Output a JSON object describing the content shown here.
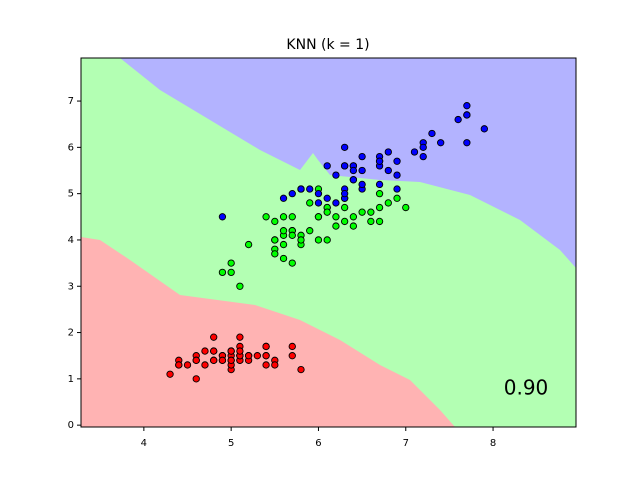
{
  "chart_data": {
    "type": "scatter",
    "title": "KNN (k = 1)",
    "annotation": "0.90",
    "xlim": [
      3.28,
      8.95
    ],
    "ylim": [
      -0.04,
      7.93
    ],
    "xticks": [
      4,
      5,
      6,
      7,
      8
    ],
    "yticks": [
      0,
      1,
      2,
      3,
      4,
      5,
      6,
      7
    ],
    "series": [
      {
        "color": "#ff0000",
        "x": [
          5.1,
          4.9,
          4.7,
          4.6,
          5.0,
          5.4,
          4.6,
          5.0,
          4.4,
          4.9,
          5.4,
          4.8,
          4.8,
          4.3,
          5.8,
          5.7,
          5.4,
          5.1,
          5.7,
          5.1,
          5.4,
          5.1,
          4.6,
          5.1,
          4.8,
          5.0,
          5.0,
          5.2,
          5.2,
          4.7,
          4.8,
          5.4,
          5.2,
          5.5,
          4.9,
          5.0,
          5.5,
          4.9,
          4.4,
          5.1,
          5.0,
          4.5,
          4.4,
          5.0,
          5.1,
          4.8,
          5.1,
          4.6,
          5.3,
          5.0
        ],
        "values": [
          1.4,
          1.4,
          1.3,
          1.5,
          1.4,
          1.7,
          1.4,
          1.5,
          1.4,
          1.5,
          1.5,
          1.6,
          1.4,
          1.1,
          1.2,
          1.5,
          1.3,
          1.4,
          1.7,
          1.5,
          1.7,
          1.5,
          1.0,
          1.7,
          1.9,
          1.6,
          1.6,
          1.5,
          1.4,
          1.6,
          1.6,
          1.5,
          1.5,
          1.4,
          1.5,
          1.2,
          1.3,
          1.4,
          1.3,
          1.5,
          1.3,
          1.3,
          1.3,
          1.6,
          1.9,
          1.4,
          1.6,
          1.4,
          1.5,
          1.4
        ]
      },
      {
        "color": "#00ff00",
        "x": [
          7.0,
          6.4,
          6.9,
          5.5,
          6.5,
          5.7,
          6.3,
          4.9,
          6.6,
          5.2,
          5.0,
          5.9,
          6.0,
          6.1,
          5.6,
          6.7,
          5.6,
          5.8,
          6.2,
          5.6,
          5.9,
          6.1,
          6.3,
          6.1,
          6.4,
          6.6,
          6.8,
          6.7,
          6.0,
          5.7,
          5.5,
          5.5,
          5.8,
          6.0,
          5.4,
          6.0,
          6.7,
          6.3,
          5.6,
          5.5,
          5.5,
          6.1,
          5.8,
          5.0,
          5.6,
          5.7,
          5.7,
          6.2,
          5.1,
          5.7
        ],
        "values": [
          4.7,
          4.5,
          4.9,
          4.0,
          4.6,
          4.5,
          4.7,
          3.3,
          4.6,
          3.9,
          3.5,
          4.2,
          4.0,
          4.7,
          3.6,
          4.4,
          4.5,
          4.1,
          4.5,
          3.9,
          4.8,
          4.0,
          4.9,
          4.7,
          4.3,
          4.4,
          4.8,
          5.0,
          4.5,
          3.5,
          3.8,
          3.7,
          3.9,
          5.1,
          4.5,
          4.5,
          4.7,
          4.4,
          4.1,
          4.0,
          4.4,
          4.6,
          4.0,
          3.3,
          4.2,
          4.2,
          4.2,
          4.3,
          3.0,
          4.1
        ]
      },
      {
        "color": "#0000ff",
        "x": [
          6.3,
          5.8,
          7.1,
          6.3,
          6.5,
          7.6,
          4.9,
          7.3,
          6.7,
          7.2,
          6.5,
          6.4,
          6.8,
          5.7,
          5.8,
          6.4,
          6.5,
          7.7,
          7.7,
          6.0,
          6.9,
          5.6,
          7.7,
          6.3,
          6.7,
          7.2,
          6.2,
          6.1,
          6.4,
          7.2,
          7.4,
          7.9,
          6.4,
          6.3,
          6.1,
          7.7,
          6.3,
          6.4,
          6.0,
          6.9,
          6.7,
          6.9,
          5.8,
          6.8,
          6.7,
          6.7,
          6.3,
          6.5,
          6.2,
          5.9
        ],
        "values": [
          6.0,
          5.1,
          5.9,
          5.6,
          5.8,
          6.6,
          4.5,
          6.3,
          5.8,
          6.1,
          5.1,
          5.3,
          5.5,
          5.0,
          5.1,
          5.3,
          5.5,
          6.7,
          6.9,
          5.0,
          5.7,
          4.9,
          6.7,
          4.9,
          5.7,
          6.0,
          4.8,
          4.9,
          5.6,
          5.8,
          6.1,
          6.4,
          5.6,
          5.1,
          5.6,
          6.1,
          5.6,
          5.5,
          4.8,
          5.4,
          5.6,
          5.1,
          5.1,
          5.9,
          5.7,
          5.2,
          5.0,
          5.2,
          5.4,
          5.1
        ]
      }
    ]
  }
}
